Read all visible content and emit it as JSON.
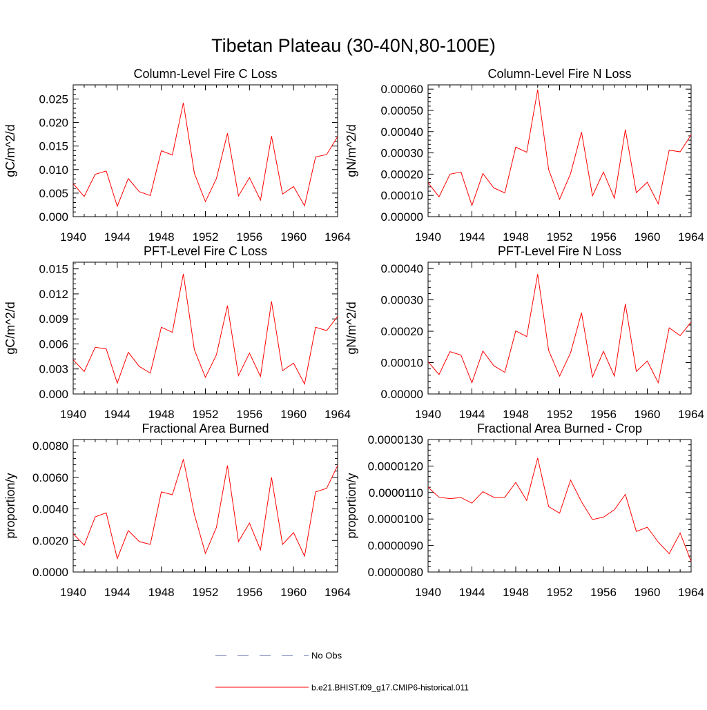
{
  "figure": {
    "title": "Tibetan Plateau (30-40N,80-100E)"
  },
  "colors": {
    "model_line": "#ff0000",
    "obs_line": "#5a6aa8",
    "axis": "#000000"
  },
  "legend": {
    "placement": "bottom-center",
    "entries": [
      {
        "label": "No Obs",
        "style": "dashed",
        "color": "#5a6aa8"
      },
      {
        "label": "b.e21.BHIST.f09_g17.CMIP6-historical.011",
        "style": "solid",
        "color": "#ff0000"
      }
    ]
  },
  "chart_data": [
    {
      "type": "line",
      "title": "Column-Level Fire C Loss",
      "ylabel": "gC/m^2/d",
      "xlim": [
        1940,
        1964
      ],
      "ylim": [
        0,
        0.028
      ],
      "xticks": [
        "1940",
        "1944",
        "1948",
        "1952",
        "1956",
        "1960",
        "1964"
      ],
      "yticks": [
        "0.000",
        "0.005",
        "0.010",
        "0.015",
        "0.020",
        "0.025"
      ],
      "x": [
        1940,
        1941,
        1942,
        1943,
        1944,
        1945,
        1946,
        1947,
        1948,
        1949,
        1950,
        1951,
        1952,
        1953,
        1954,
        1955,
        1956,
        1957,
        1958,
        1959,
        1960,
        1961,
        1962,
        1963,
        1964
      ],
      "series": [
        {
          "name": "b.e21.BHIST.f09_g17.CMIP6-historical.011",
          "values": [
            0.007,
            0.0043,
            0.009,
            0.0097,
            0.0022,
            0.0081,
            0.0053,
            0.0045,
            0.014,
            0.0131,
            0.0242,
            0.0092,
            0.0032,
            0.0081,
            0.0177,
            0.0044,
            0.0083,
            0.0035,
            0.0171,
            0.0048,
            0.0064,
            0.0023,
            0.0127,
            0.0132,
            0.017
          ]
        }
      ]
    },
    {
      "type": "line",
      "title": "Column-Level Fire N Loss",
      "ylabel": "gN/m^2/d",
      "xlim": [
        1940,
        1964
      ],
      "ylim": [
        0,
        0.00062
      ],
      "xticks": [
        "1940",
        "1944",
        "1948",
        "1952",
        "1956",
        "1960",
        "1964"
      ],
      "yticks": [
        "0.00000",
        "0.00010",
        "0.00020",
        "0.00030",
        "0.00040",
        "0.00050",
        "0.00060"
      ],
      "x": [
        1940,
        1941,
        1942,
        1943,
        1944,
        1945,
        1946,
        1947,
        1948,
        1949,
        1950,
        1951,
        1952,
        1953,
        1954,
        1955,
        1956,
        1957,
        1958,
        1959,
        1960,
        1961,
        1962,
        1963,
        1964
      ],
      "series": [
        {
          "name": "b.e21.BHIST.f09_g17.CMIP6-historical.011",
          "values": [
            0.00016,
            9.3e-05,
            0.0002,
            0.00021,
            5.3e-05,
            0.000203,
            0.000135,
            0.000112,
            0.000327,
            0.000303,
            0.000597,
            0.000222,
            8.2e-05,
            0.000202,
            0.000398,
            9.8e-05,
            0.00021,
            8.7e-05,
            0.00041,
            0.000113,
            0.000162,
            6e-05,
            0.000313,
            0.000305,
            0.000385
          ]
        }
      ]
    },
    {
      "type": "line",
      "title": "PFT-Level Fire C Loss",
      "ylabel": "gC/m^2/d",
      "xlim": [
        1940,
        1964
      ],
      "ylim": [
        0,
        0.0158
      ],
      "xticks": [
        "1940",
        "1944",
        "1948",
        "1952",
        "1956",
        "1960",
        "1964"
      ],
      "yticks": [
        "0.000",
        "0.003",
        "0.006",
        "0.009",
        "0.012",
        "0.015"
      ],
      "x": [
        1940,
        1941,
        1942,
        1943,
        1944,
        1945,
        1946,
        1947,
        1948,
        1949,
        1950,
        1951,
        1952,
        1953,
        1954,
        1955,
        1956,
        1957,
        1958,
        1959,
        1960,
        1961,
        1962,
        1963,
        1964
      ],
      "series": [
        {
          "name": "b.e21.BHIST.f09_g17.CMIP6-historical.011",
          "values": [
            0.0041,
            0.0027,
            0.0056,
            0.0054,
            0.0013,
            0.005,
            0.0033,
            0.0025,
            0.008,
            0.0074,
            0.0144,
            0.0053,
            0.002,
            0.0047,
            0.0106,
            0.0022,
            0.0049,
            0.0021,
            0.0111,
            0.0028,
            0.0037,
            0.0012,
            0.008,
            0.0076,
            0.0093
          ]
        }
      ]
    },
    {
      "type": "line",
      "title": "PFT-Level Fire N Loss",
      "ylabel": "gN/m^2/d",
      "xlim": [
        1940,
        1964
      ],
      "ylim": [
        0,
        0.00042
      ],
      "xticks": [
        "1940",
        "1944",
        "1948",
        "1952",
        "1956",
        "1960",
        "1964"
      ],
      "yticks": [
        "0.00000",
        "0.00010",
        "0.00020",
        "0.00030",
        "0.00040"
      ],
      "x": [
        1940,
        1941,
        1942,
        1943,
        1944,
        1945,
        1946,
        1947,
        1948,
        1949,
        1950,
        1951,
        1952,
        1953,
        1954,
        1955,
        1956,
        1957,
        1958,
        1959,
        1960,
        1961,
        1962,
        1963,
        1964
      ],
      "series": [
        {
          "name": "b.e21.BHIST.f09_g17.CMIP6-historical.011",
          "values": [
            0.000103,
            6.2e-05,
            0.000135,
            0.000124,
            3.6e-05,
            0.000137,
            9e-05,
            6.9e-05,
            0.000201,
            0.000183,
            0.000382,
            0.000139,
            5.7e-05,
            0.000131,
            0.000259,
            5.4e-05,
            0.000136,
            5.7e-05,
            0.000287,
            7.2e-05,
            0.000105,
            3.6e-05,
            0.000211,
            0.000186,
            0.000229
          ]
        }
      ]
    },
    {
      "type": "line",
      "title": "Fractional Area Burned",
      "ylabel": "proportion/y",
      "xlim": [
        1940,
        1964
      ],
      "ylim": [
        0,
        0.0084
      ],
      "xticks": [
        "1940",
        "1944",
        "1948",
        "1952",
        "1956",
        "1960",
        "1964"
      ],
      "yticks": [
        "0.0000",
        "0.0020",
        "0.0040",
        "0.0060",
        "0.0080"
      ],
      "x": [
        1940,
        1941,
        1942,
        1943,
        1944,
        1945,
        1946,
        1947,
        1948,
        1949,
        1950,
        1951,
        1952,
        1953,
        1954,
        1955,
        1956,
        1957,
        1958,
        1959,
        1960,
        1961,
        1962,
        1963,
        1964
      ],
      "series": [
        {
          "name": "b.e21.BHIST.f09_g17.CMIP6-historical.011",
          "values": [
            0.00243,
            0.0017,
            0.0035,
            0.00375,
            0.00085,
            0.00263,
            0.00193,
            0.00175,
            0.00508,
            0.0049,
            0.00715,
            0.00365,
            0.00118,
            0.00283,
            0.00675,
            0.00193,
            0.0031,
            0.0014,
            0.006,
            0.00175,
            0.0025,
            0.001,
            0.00508,
            0.0053,
            0.00675
          ]
        }
      ]
    },
    {
      "type": "line",
      "title": "Fractional Area Burned - Crop",
      "ylabel": "proportion/y",
      "xlim": [
        1940,
        1964
      ],
      "ylim": [
        8e-06,
        1.3e-05
      ],
      "xticks": [
        "1940",
        "1944",
        "1948",
        "1952",
        "1956",
        "1960",
        "1964"
      ],
      "yticks": [
        "0.0000080",
        "0.0000090",
        "0.0000100",
        "0.0000110",
        "0.0000120",
        "0.0000130"
      ],
      "x": [
        1940,
        1941,
        1942,
        1943,
        1944,
        1945,
        1946,
        1947,
        1948,
        1949,
        1950,
        1951,
        1952,
        1953,
        1954,
        1955,
        1956,
        1957,
        1958,
        1959,
        1960,
        1961,
        1962,
        1963,
        1964
      ],
      "series": [
        {
          "name": "b.e21.BHIST.f09_g17.CMIP6-historical.011",
          "values": [
            1.12e-05,
            1.082e-05,
            1.077e-05,
            1.081e-05,
            1.06e-05,
            1.103e-05,
            1.082e-05,
            1.082e-05,
            1.138e-05,
            1.07e-05,
            1.23e-05,
            1.047e-05,
            1.022e-05,
            1.147e-05,
            1.065e-05,
            9.98e-06,
            1.007e-05,
            1.035e-05,
            1.093e-05,
            9.53e-06,
            9.69e-06,
            9.13e-06,
            8.69e-06,
            9.47e-06,
            8.4e-06
          ]
        }
      ]
    }
  ]
}
